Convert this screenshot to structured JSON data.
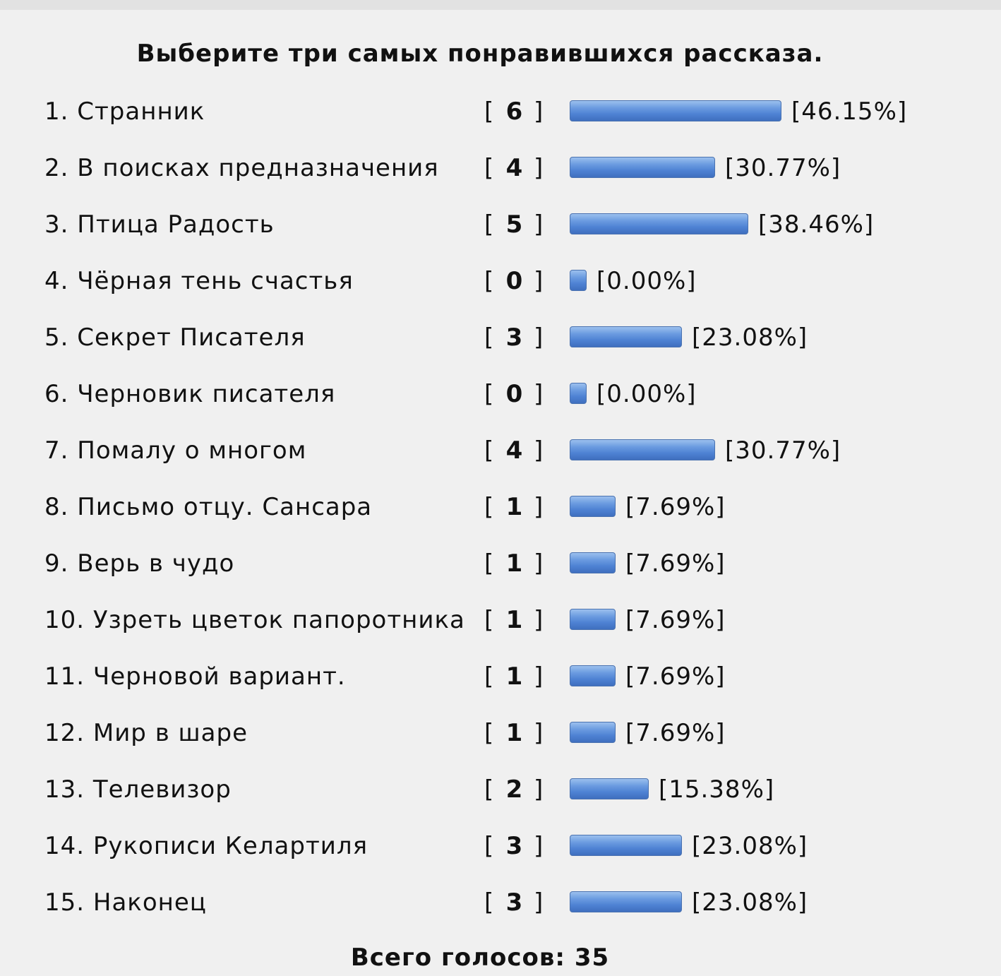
{
  "poll": {
    "title": "Выберите три самых понравившихся рассказа.",
    "vote_brackets": [
      "[",
      "]"
    ],
    "options": [
      {
        "label": "1. Странник",
        "votes": 6,
        "percent": 46.15,
        "percent_label": "[46.15%]"
      },
      {
        "label": "2. В поисках предназначения",
        "votes": 4,
        "percent": 30.77,
        "percent_label": "[30.77%]"
      },
      {
        "label": "3. Птица Радость",
        "votes": 5,
        "percent": 38.46,
        "percent_label": "[38.46%]"
      },
      {
        "label": "4. Чёрная тень счастья",
        "votes": 0,
        "percent": 0,
        "percent_label": "[0.00%]"
      },
      {
        "label": "5. Секрет Писателя",
        "votes": 3,
        "percent": 23.08,
        "percent_label": "[23.08%]"
      },
      {
        "label": "6. Черновик писателя",
        "votes": 0,
        "percent": 0,
        "percent_label": "[0.00%]"
      },
      {
        "label": "7. Помалу о многом",
        "votes": 4,
        "percent": 30.77,
        "percent_label": "[30.77%]"
      },
      {
        "label": "8. Письмо отцу. Сансара",
        "votes": 1,
        "percent": 7.69,
        "percent_label": "[7.69%]"
      },
      {
        "label": "9. Верь в чудо",
        "votes": 1,
        "percent": 7.69,
        "percent_label": "[7.69%]"
      },
      {
        "label": "10. Узреть цветок папоротника",
        "votes": 1,
        "percent": 7.69,
        "percent_label": "[7.69%]"
      },
      {
        "label": "11. Черновой вариант.",
        "votes": 1,
        "percent": 7.69,
        "percent_label": "[7.69%]"
      },
      {
        "label": "12. Мир в шаре",
        "votes": 1,
        "percent": 7.69,
        "percent_label": "[7.69%]"
      },
      {
        "label": "13. Телевизор",
        "votes": 2,
        "percent": 15.38,
        "percent_label": "[15.38%]"
      },
      {
        "label": "14. Рукописи Келартиля",
        "votes": 3,
        "percent": 23.08,
        "percent_label": "[23.08%]"
      },
      {
        "label": "15. Наконец",
        "votes": 3,
        "percent": 23.08,
        "percent_label": "[23.08%]"
      }
    ],
    "total_label": "Всего голосов:",
    "total": 35
  }
}
